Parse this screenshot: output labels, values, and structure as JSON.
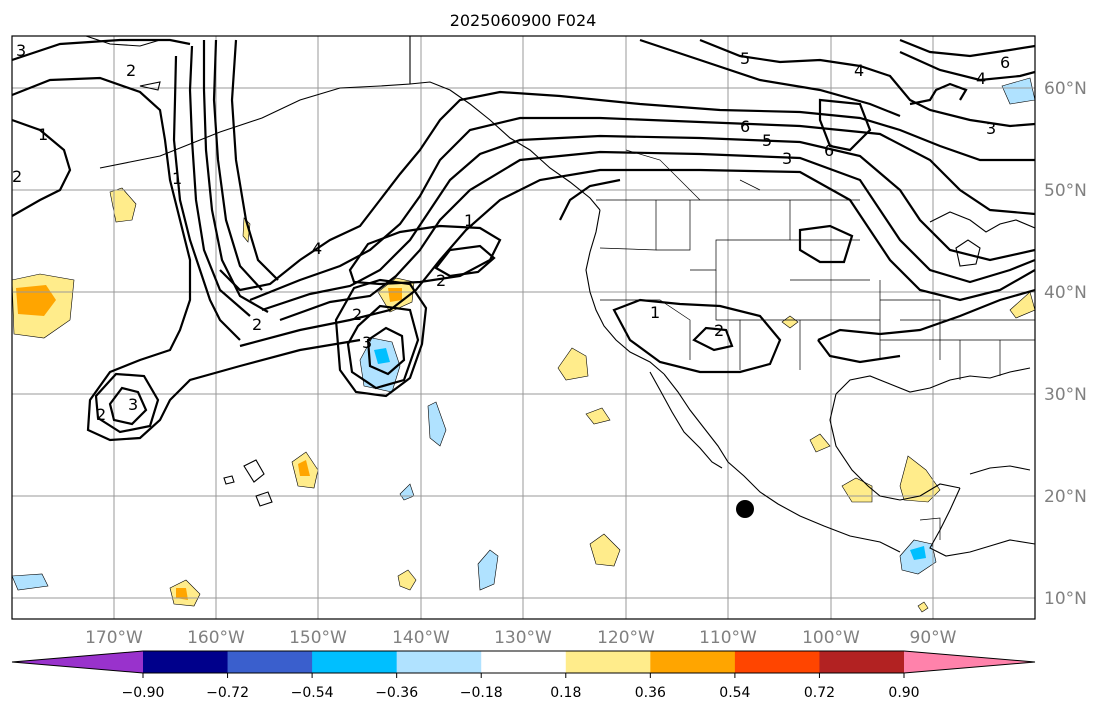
{
  "title": "2025060900 F024",
  "lon_labels": [
    "170°W",
    "160°W",
    "150°W",
    "140°W",
    "130°W",
    "120°W",
    "110°W",
    "100°W",
    "90°W"
  ],
  "lat_labels": [
    "60°N",
    "50°N",
    "40°N",
    "30°N",
    "20°N",
    "10°N"
  ],
  "colorbar": {
    "colors": [
      "#9932cc",
      "#00008b",
      "#3a5fcd",
      "#00bfff",
      "#b0e2ff",
      "#ffffff",
      "#ffec8b",
      "#ffa500",
      "#ff4500",
      "#b22222",
      "#ff82ab"
    ],
    "tick_labels": [
      "−0.90",
      "−0.72",
      "−0.54",
      "−0.36",
      "−0.18",
      "0.18",
      "0.36",
      "0.54",
      "0.72",
      "0.90"
    ]
  },
  "contour_labels": [
    "1",
    "2",
    "3",
    "4",
    "5",
    "6"
  ],
  "colors": {
    "contour": "#000000",
    "grid": "#999999",
    "label": "#808080"
  }
}
